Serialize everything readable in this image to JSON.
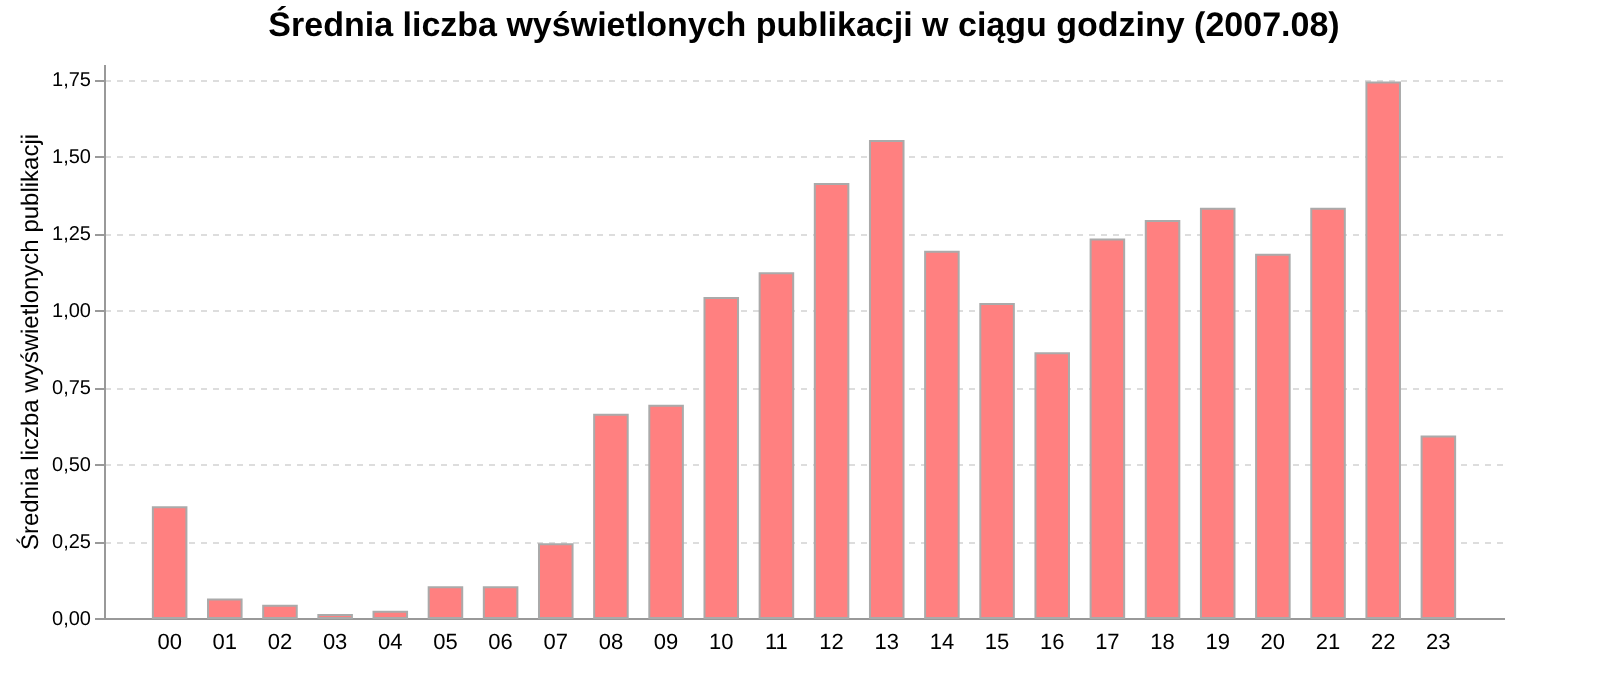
{
  "chart_data": {
    "type": "bar",
    "title": "Średnia liczba wyświetlonych publikacji w ciągu godziny (2007.08)",
    "ylabel": "Średnia liczba wyświetlonych publikacji",
    "categories": [
      "00",
      "01",
      "02",
      "03",
      "04",
      "05",
      "06",
      "07",
      "08",
      "09",
      "10",
      "11",
      "12",
      "13",
      "14",
      "15",
      "16",
      "17",
      "18",
      "19",
      "20",
      "21",
      "22",
      "23"
    ],
    "values": [
      0.36,
      0.06,
      0.04,
      0.01,
      0.02,
      0.1,
      0.1,
      0.24,
      0.66,
      0.69,
      1.04,
      1.12,
      1.41,
      1.55,
      1.19,
      1.02,
      0.86,
      1.23,
      1.29,
      1.33,
      1.18,
      1.33,
      1.74,
      0.59
    ],
    "color": "#ff8080",
    "ylim": [
      0,
      1.8
    ],
    "yticks": [
      {
        "value": 0,
        "label": "0,00"
      },
      {
        "value": 0.25,
        "label": "0,25"
      },
      {
        "value": 0.5,
        "label": "0,50"
      },
      {
        "value": 0.75,
        "label": "0,75"
      },
      {
        "value": 1,
        "label": "1,00"
      },
      {
        "value": 1.25,
        "label": "1,25"
      },
      {
        "value": 1.5,
        "label": "1,50"
      },
      {
        "value": 1.75,
        "label": "1,75"
      }
    ],
    "grid": "y"
  }
}
